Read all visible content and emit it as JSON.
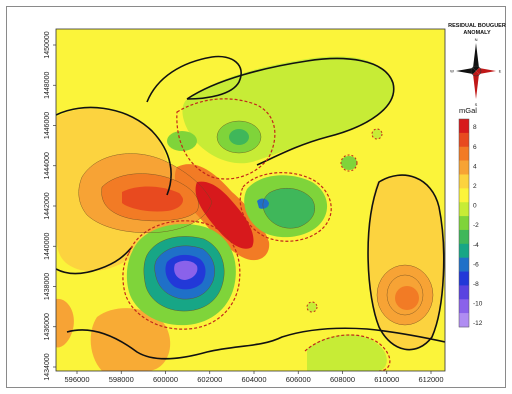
{
  "map": {
    "title_line1": "RESIDUAL BOUGUER",
    "title_line2": "ANOMALY",
    "compass": {
      "n": "N",
      "s": "S",
      "e": "E",
      "w": "W"
    },
    "colorbar": {
      "unit": "mGal",
      "labels": [
        "8",
        "6",
        "4",
        "2",
        "0",
        "-2",
        "-4",
        "-6",
        "-8",
        "-10",
        "-12"
      ],
      "colors": [
        "#d7191c",
        "#e84a1f",
        "#f27b25",
        "#f7a335",
        "#fcd33f",
        "#fbf43a",
        "#c7ec36",
        "#7fd43a",
        "#3fb75a",
        "#17a686",
        "#1f70c8",
        "#2238d8",
        "#5a43e0",
        "#8a62ea",
        "#b08df2"
      ]
    },
    "x_ticks": [
      "596000",
      "598000",
      "600000",
      "602000",
      "604000",
      "606000",
      "608000",
      "610000",
      "612000"
    ],
    "y_ticks": [
      "1450000",
      "1448000",
      "1446000",
      "1444000",
      "1442000",
      "1440000",
      "1438000",
      "1436000",
      "1434000"
    ]
  }
}
